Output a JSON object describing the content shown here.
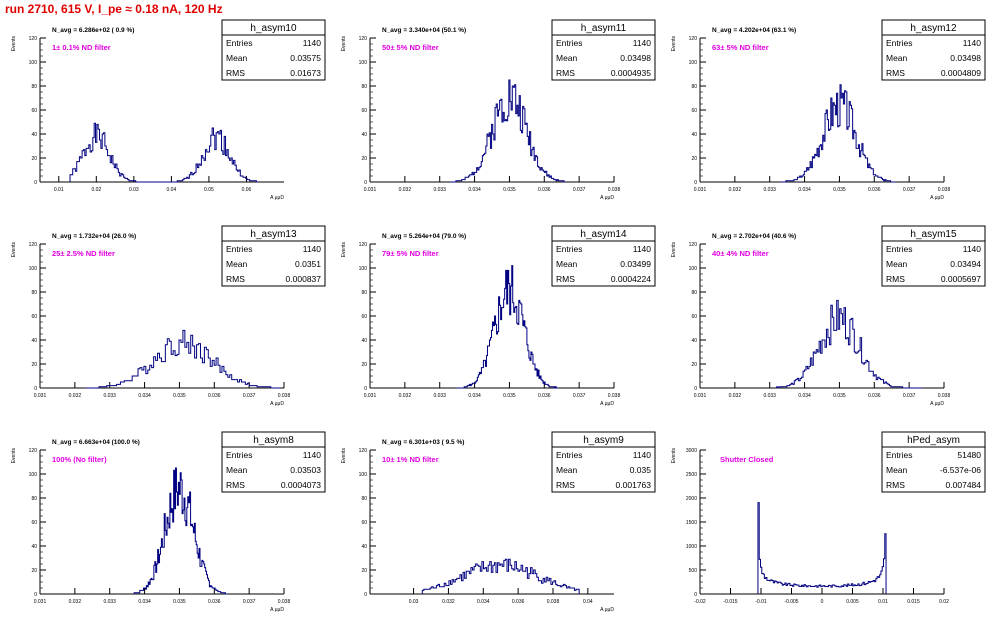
{
  "run_title": "run 2710,   615 V, I_pe ≈ 0.18 nA, 120 Hz",
  "stat_labels": {
    "entries": "Entries",
    "mean": "Mean",
    "rms": "RMS"
  },
  "colors": {
    "title": "#e00000",
    "filter_label": "#e000e0",
    "hist_line": "#000080",
    "axes": "#000000"
  },
  "chart_data": [
    {
      "type": "histogram",
      "name": "h_asym10",
      "navg": "N_avg = 6.286e+02 ( 0.9 %)",
      "filter_label": "1± 0.1% ND filter",
      "ylabel": "Events",
      "xlabel": "A μμD",
      "entries": "1140",
      "mean": "0.03575",
      "rms": "0.01673",
      "xlim": [
        0.005,
        0.07
      ],
      "ylim": [
        0,
        120
      ],
      "xticks": [
        0.01,
        0.02,
        0.03,
        0.04,
        0.05,
        0.06
      ],
      "xtick_labels": [
        "0.01",
        "0.02",
        "0.03",
        "0.04",
        "0.05",
        "0.06"
      ],
      "yticks": [
        0,
        20,
        40,
        60,
        80,
        100,
        120
      ],
      "ytick_labels": [
        "0",
        "20",
        "40",
        "60",
        "80",
        "100",
        "120"
      ],
      "peaks": [
        {
          "c": 0.02,
          "s": 0.0035,
          "h": 38
        },
        {
          "c": 0.052,
          "s": 0.0035,
          "h": 38
        }
      ],
      "range": [
        0.013,
        0.063
      ],
      "nbins": 140,
      "seed": 1
    },
    {
      "type": "histogram",
      "name": "h_asym11",
      "navg": "N_avg = 3.340e+04 (50.1 %)",
      "filter_label": "50± 5% ND filter",
      "ylabel": "Events",
      "xlabel": "A μμD",
      "entries": "1140",
      "mean": "0.03498",
      "rms": "0.0004935",
      "xlim": [
        0.031,
        0.038
      ],
      "ylim": [
        0,
        120
      ],
      "xticks": [
        0.031,
        0.032,
        0.033,
        0.034,
        0.035,
        0.036,
        0.037,
        0.038
      ],
      "xtick_labels": [
        "0.031",
        "0.032",
        "0.033",
        "0.034",
        "0.035",
        "0.036",
        "0.037",
        "0.038"
      ],
      "yticks": [
        0,
        20,
        40,
        60,
        80,
        100,
        120
      ],
      "ytick_labels": [
        "0",
        "20",
        "40",
        "60",
        "80",
        "100",
        "120"
      ],
      "peaks": [
        {
          "c": 0.035,
          "s": 0.00049,
          "h": 72
        }
      ],
      "range": [
        0.0333,
        0.0366
      ],
      "nbins": 100,
      "seed": 2
    },
    {
      "type": "histogram",
      "name": "h_asym12",
      "navg": "N_avg = 4.202e+04 (63.1 %)",
      "filter_label": "63± 5% ND filter",
      "ylabel": "Events",
      "xlabel": "A μμD",
      "entries": "1140",
      "mean": "0.03498",
      "rms": "0.0004809",
      "xlim": [
        0.031,
        0.038
      ],
      "ylim": [
        0,
        120
      ],
      "xticks": [
        0.031,
        0.032,
        0.033,
        0.034,
        0.035,
        0.036,
        0.037,
        0.038
      ],
      "xtick_labels": [
        "0.031",
        "0.032",
        "0.033",
        "0.034",
        "0.035",
        "0.036",
        "0.037",
        "0.038"
      ],
      "yticks": [
        0,
        20,
        40,
        60,
        80,
        100,
        120
      ],
      "ytick_labels": [
        "0",
        "20",
        "40",
        "60",
        "80",
        "100",
        "120"
      ],
      "peaks": [
        {
          "c": 0.035,
          "s": 0.00048,
          "h": 64
        }
      ],
      "range": [
        0.0333,
        0.0366
      ],
      "nbins": 100,
      "seed": 3
    },
    {
      "type": "histogram",
      "name": "h_asym13",
      "navg": "N_avg = 1.732e+04 (26.0 %)",
      "filter_label": "25± 2.5% ND filter",
      "ylabel": "Events",
      "xlabel": "A μμD",
      "entries": "1140",
      "mean": "0.0351",
      "rms": "0.000837",
      "xlim": [
        0.031,
        0.038
      ],
      "ylim": [
        0,
        120
      ],
      "xticks": [
        0.031,
        0.032,
        0.033,
        0.034,
        0.035,
        0.036,
        0.037,
        0.038
      ],
      "xtick_labels": [
        "0.031",
        "0.032",
        "0.033",
        "0.034",
        "0.035",
        "0.036",
        "0.037",
        "0.038"
      ],
      "yticks": [
        0,
        20,
        40,
        60,
        80,
        100,
        120
      ],
      "ytick_labels": [
        "0",
        "20",
        "40",
        "60",
        "80",
        "100",
        "120"
      ],
      "peaks": [
        {
          "c": 0.0351,
          "s": 0.00084,
          "h": 38
        }
      ],
      "range": [
        0.0323,
        0.0379
      ],
      "nbins": 100,
      "seed": 4
    },
    {
      "type": "histogram",
      "name": "h_asym14",
      "navg": "N_avg = 5.264e+04 (79.0 %)",
      "filter_label": "79± 5% ND filter",
      "ylabel": "Events",
      "xlabel": "A μμD",
      "entries": "1140",
      "mean": "0.03499",
      "rms": "0.0004224",
      "xlim": [
        0.031,
        0.038
      ],
      "ylim": [
        0,
        120
      ],
      "xticks": [
        0.031,
        0.032,
        0.033,
        0.034,
        0.035,
        0.036,
        0.037,
        0.038
      ],
      "xtick_labels": [
        "0.031",
        "0.032",
        "0.033",
        "0.034",
        "0.035",
        "0.036",
        "0.037",
        "0.038"
      ],
      "yticks": [
        0,
        20,
        40,
        60,
        80,
        100,
        120
      ],
      "ytick_labels": [
        "0",
        "20",
        "40",
        "60",
        "80",
        "100",
        "120"
      ],
      "peaks": [
        {
          "c": 0.035,
          "s": 0.00042,
          "h": 82
        }
      ],
      "range": [
        0.0335,
        0.0364
      ],
      "nbins": 100,
      "seed": 5
    },
    {
      "type": "histogram",
      "name": "h_asym15",
      "navg": "N_avg = 2.702e+04 (40.6 %)",
      "filter_label": "40± 4% ND filter",
      "ylabel": "Events",
      "xlabel": "A μμD",
      "entries": "1140",
      "mean": "0.03494",
      "rms": "0.0005697",
      "xlim": [
        0.031,
        0.038
      ],
      "ylim": [
        0,
        120
      ],
      "xticks": [
        0.031,
        0.032,
        0.033,
        0.034,
        0.035,
        0.036,
        0.037,
        0.038
      ],
      "xtick_labels": [
        "0.031",
        "0.032",
        "0.033",
        "0.034",
        "0.035",
        "0.036",
        "0.037",
        "0.038"
      ],
      "yticks": [
        0,
        20,
        40,
        60,
        80,
        100,
        120
      ],
      "ytick_labels": [
        "0",
        "20",
        "40",
        "60",
        "80",
        "100",
        "120"
      ],
      "peaks": [
        {
          "c": 0.035,
          "s": 0.00057,
          "h": 58
        }
      ],
      "range": [
        0.0332,
        0.0374
      ],
      "nbins": 100,
      "seed": 6
    },
    {
      "type": "histogram",
      "name": "h_asym8",
      "navg": "N_avg = 6.663e+04 (100.0 %)",
      "filter_label": "100% (No filter)",
      "ylabel": "Events",
      "xlabel": "A μμD",
      "entries": "1140",
      "mean": "0.03503",
      "rms": "0.0004073",
      "xlim": [
        0.031,
        0.038
      ],
      "ylim": [
        0,
        120
      ],
      "xticks": [
        0.031,
        0.032,
        0.033,
        0.034,
        0.035,
        0.036,
        0.037,
        0.038
      ],
      "xtick_labels": [
        "0.031",
        "0.032",
        "0.033",
        "0.034",
        "0.035",
        "0.036",
        "0.037",
        "0.038"
      ],
      "yticks": [
        0,
        20,
        40,
        60,
        80,
        100,
        120
      ],
      "ytick_labels": [
        "0",
        "20",
        "40",
        "60",
        "80",
        "100",
        "120"
      ],
      "peaks": [
        {
          "c": 0.035,
          "s": 0.00041,
          "h": 88
        }
      ],
      "range": [
        0.0337,
        0.0364
      ],
      "nbins": 100,
      "seed": 7
    },
    {
      "type": "histogram",
      "name": "h_asym9",
      "navg": "N_avg = 6.301e+03 ( 9.5 %)",
      "filter_label": "10± 1% ND filter",
      "ylabel": "Events",
      "xlabel": "A μμD",
      "entries": "1140",
      "mean": "0.035",
      "rms": "0.001763",
      "xlim": [
        0.0275,
        0.0415
      ],
      "ylim": [
        0,
        120
      ],
      "xticks": [
        0.03,
        0.032,
        0.034,
        0.036,
        0.038,
        0.04
      ],
      "xtick_labels": [
        "0.03",
        "0.032",
        "0.034",
        "0.036",
        "0.038",
        "0.04"
      ],
      "yticks": [
        0,
        20,
        40,
        60,
        80,
        100,
        120
      ],
      "ytick_labels": [
        "0",
        "20",
        "40",
        "60",
        "80",
        "100",
        "120"
      ],
      "peaks": [
        {
          "c": 0.035,
          "s": 0.0022,
          "h": 24
        }
      ],
      "range": [
        0.0305,
        0.0395
      ],
      "nbins": 100,
      "seed": 8
    },
    {
      "type": "histogram",
      "name": "hPed_asym",
      "navg": "",
      "filter_label": "Shutter Closed",
      "ylabel": "Events",
      "xlabel": "",
      "entries": "51480",
      "mean": "-6.537e-06",
      "rms": "0.007484",
      "xlim": [
        -0.02,
        0.02
      ],
      "ylim": [
        0,
        3000
      ],
      "xticks": [
        -0.02,
        -0.015,
        -0.01,
        -0.005,
        0,
        0.005,
        0.01,
        0.015,
        0.02
      ],
      "xtick_labels": [
        "-0.02",
        "-0.015",
        "-0.01",
        "-0.005",
        "0",
        "0.005",
        "0.01",
        "0.015",
        "0.02"
      ],
      "yticks": [
        0,
        500,
        1000,
        1500,
        2000,
        2500,
        3000
      ],
      "ytick_labels": [
        "0",
        "500",
        "1000",
        "1500",
        "2000",
        "2500",
        "3000"
      ],
      "arcsine": {
        "lo": -0.0105,
        "hi": 0.0105,
        "scale": 165,
        "cap": 2550,
        "base": 300
      },
      "range": [
        -0.0105,
        0.0105
      ],
      "nbins": 100,
      "seed": 9
    }
  ]
}
